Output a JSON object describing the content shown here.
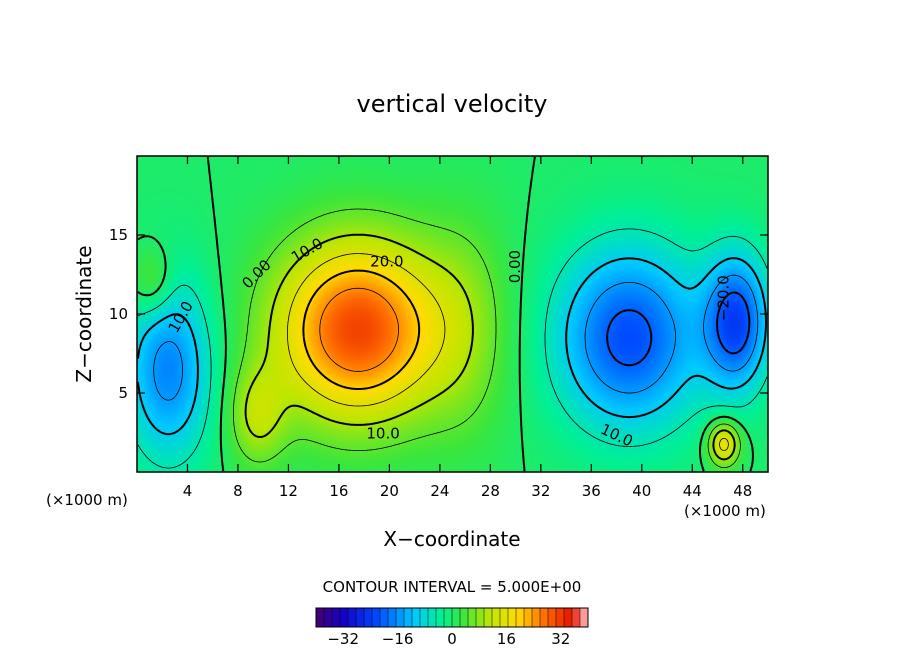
{
  "chart_data": {
    "type": "heatmap",
    "title": "vertical velocity",
    "xlabel": "X−coordinate",
    "ylabel": "Z−coordinate",
    "x_unit_left": "(×1000 m)",
    "x_unit_right": "(×1000 m)",
    "xlim": [
      0,
      50
    ],
    "ylim": [
      0,
      20
    ],
    "x_ticks": [
      4,
      8,
      12,
      16,
      20,
      24,
      28,
      32,
      36,
      40,
      44,
      48
    ],
    "x_tick_labels": [
      "4",
      "8",
      "12",
      "16",
      "20",
      "24",
      "28",
      "32",
      "36",
      "40",
      "44",
      "48"
    ],
    "y_ticks": [
      5,
      10,
      15
    ],
    "y_tick_labels": [
      "5",
      "10",
      "15"
    ],
    "contour_interval_text": "CONTOUR INTERVAL = 5.000E+00",
    "contour_interval": 5,
    "contour_levels": [
      -20,
      -15,
      -10,
      -5,
      0,
      5,
      10,
      15,
      20,
      25
    ],
    "contour_labels": [
      "0.00",
      "10.0",
      "20.0",
      "0.00",
      "10.0",
      "10.0",
      "10.0",
      "−20.0"
    ],
    "colorbar": {
      "range": [
        -40,
        40
      ],
      "ticks": [
        -32,
        -16,
        0,
        16,
        32
      ],
      "tick_labels": [
        "−32",
        "−16",
        "0",
        "16",
        "32"
      ]
    },
    "features": [
      {
        "name": "updraft core",
        "x": 17.5,
        "z": 9,
        "sx": 4.6,
        "sz": 4.0,
        "amp": 31
      },
      {
        "name": "updraft secondary",
        "x": 9.5,
        "z": 3.5,
        "sx": 1.6,
        "sz": 2.2,
        "amp": 10
      },
      {
        "name": "updraft tail",
        "x": 26,
        "z": 9,
        "sx": 2.6,
        "sz": 5.0,
        "amp": 6
      },
      {
        "name": "downdraft center",
        "x": 39,
        "z": 8.5,
        "sx": 4.0,
        "sz": 4.0,
        "amp": -22
      },
      {
        "name": "downdraft east",
        "x": 47.5,
        "z": 9.5,
        "sx": 1.8,
        "sz": 3.0,
        "amp": -22
      },
      {
        "name": "downdraft west",
        "x": 2.5,
        "z": 6.5,
        "sx": 2.4,
        "sz": 4.0,
        "amp": -17
      },
      {
        "name": "positive west upper",
        "x": 1.2,
        "z": 12,
        "sx": 1.2,
        "sz": 1.6,
        "amp": 8
      },
      {
        "name": "positive east lower",
        "x": 46.5,
        "z": 1.8,
        "sx": 0.9,
        "sz": 1.0,
        "amp": 18
      }
    ]
  }
}
